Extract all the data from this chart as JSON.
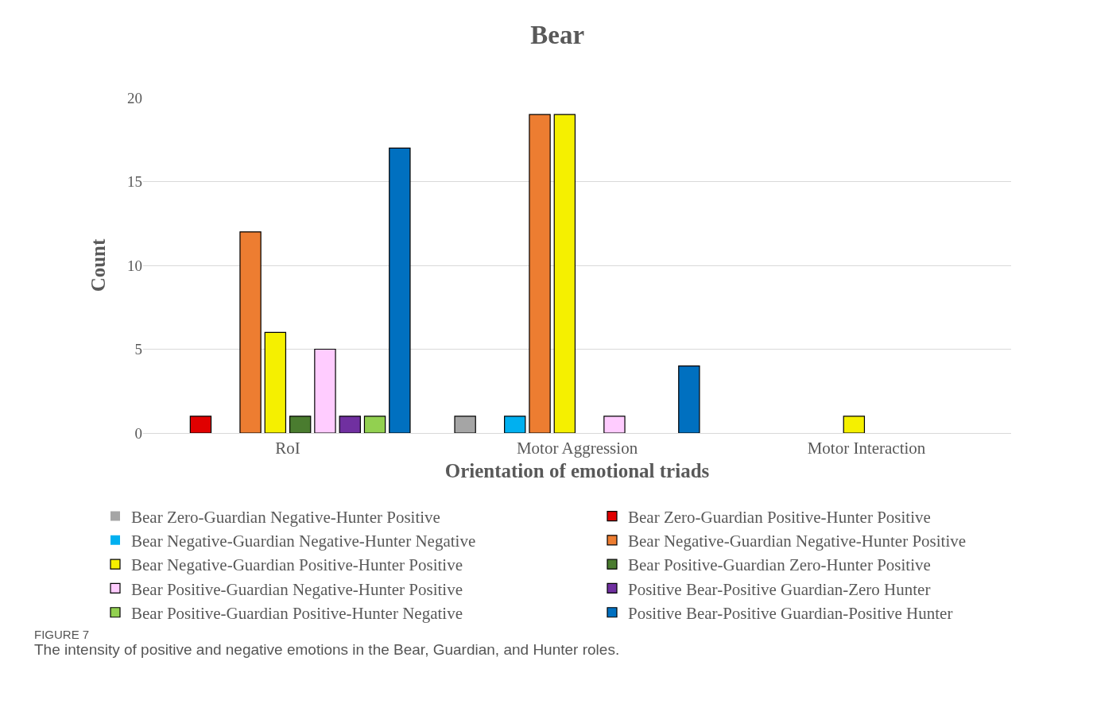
{
  "chart_data": {
    "type": "bar",
    "title": "Bear",
    "xlabel": "Orientation of emotional triads",
    "ylabel": "Count",
    "categories": [
      "RoI",
      "Motor Aggression",
      "Motor Interaction"
    ],
    "series": [
      {
        "name": "Bear Zero-Guardian Negative-Hunter Positive",
        "color": "#a5a5a5",
        "values": [
          0,
          1,
          0
        ]
      },
      {
        "name": "Bear Zero-Guardian Positive-Hunter Positive",
        "color": "#e00000",
        "values": [
          1,
          0,
          0
        ]
      },
      {
        "name": "Bear Negative-Guardian Negative-Hunter Negative",
        "color": "#00b0f0",
        "values": [
          0,
          1,
          0
        ]
      },
      {
        "name": "Bear Negative-Guardian Negative-Hunter Positive",
        "color": "#ed7d31",
        "values": [
          12,
          19,
          0
        ]
      },
      {
        "name": "Bear Negative-Guardian Positive-Hunter Positive",
        "color": "#f5f000",
        "values": [
          6,
          19,
          1
        ]
      },
      {
        "name": "Bear Positive-Guardian Zero-Hunter Positive",
        "color": "#4a7c2f",
        "values": [
          1,
          0,
          0
        ]
      },
      {
        "name": "Bear Positive-Guardian Negative-Hunter Positive",
        "color": "#ffccff",
        "values": [
          5,
          1,
          0
        ]
      },
      {
        "name": "Positive Bear-Positive Guardian-Zero Hunter",
        "color": "#7030a0",
        "values": [
          1,
          0,
          0
        ]
      },
      {
        "name": "Bear Positive-Guardian Positive-Hunter Negative",
        "color": "#92d050",
        "values": [
          1,
          0,
          0
        ]
      },
      {
        "name": "Positive Bear-Positive Guardian-Positive Hunter",
        "color": "#0070c0",
        "values": [
          17,
          4,
          0
        ]
      }
    ],
    "ylim": [
      0,
      20
    ],
    "yticks": [
      0,
      5,
      10,
      15,
      20
    ],
    "grid": "y",
    "legend": "bottom",
    "annotations": [
      "FIGURE 7",
      "The intensity of positive and negative emotions in the Bear, Guardian, and Hunter roles."
    ]
  }
}
